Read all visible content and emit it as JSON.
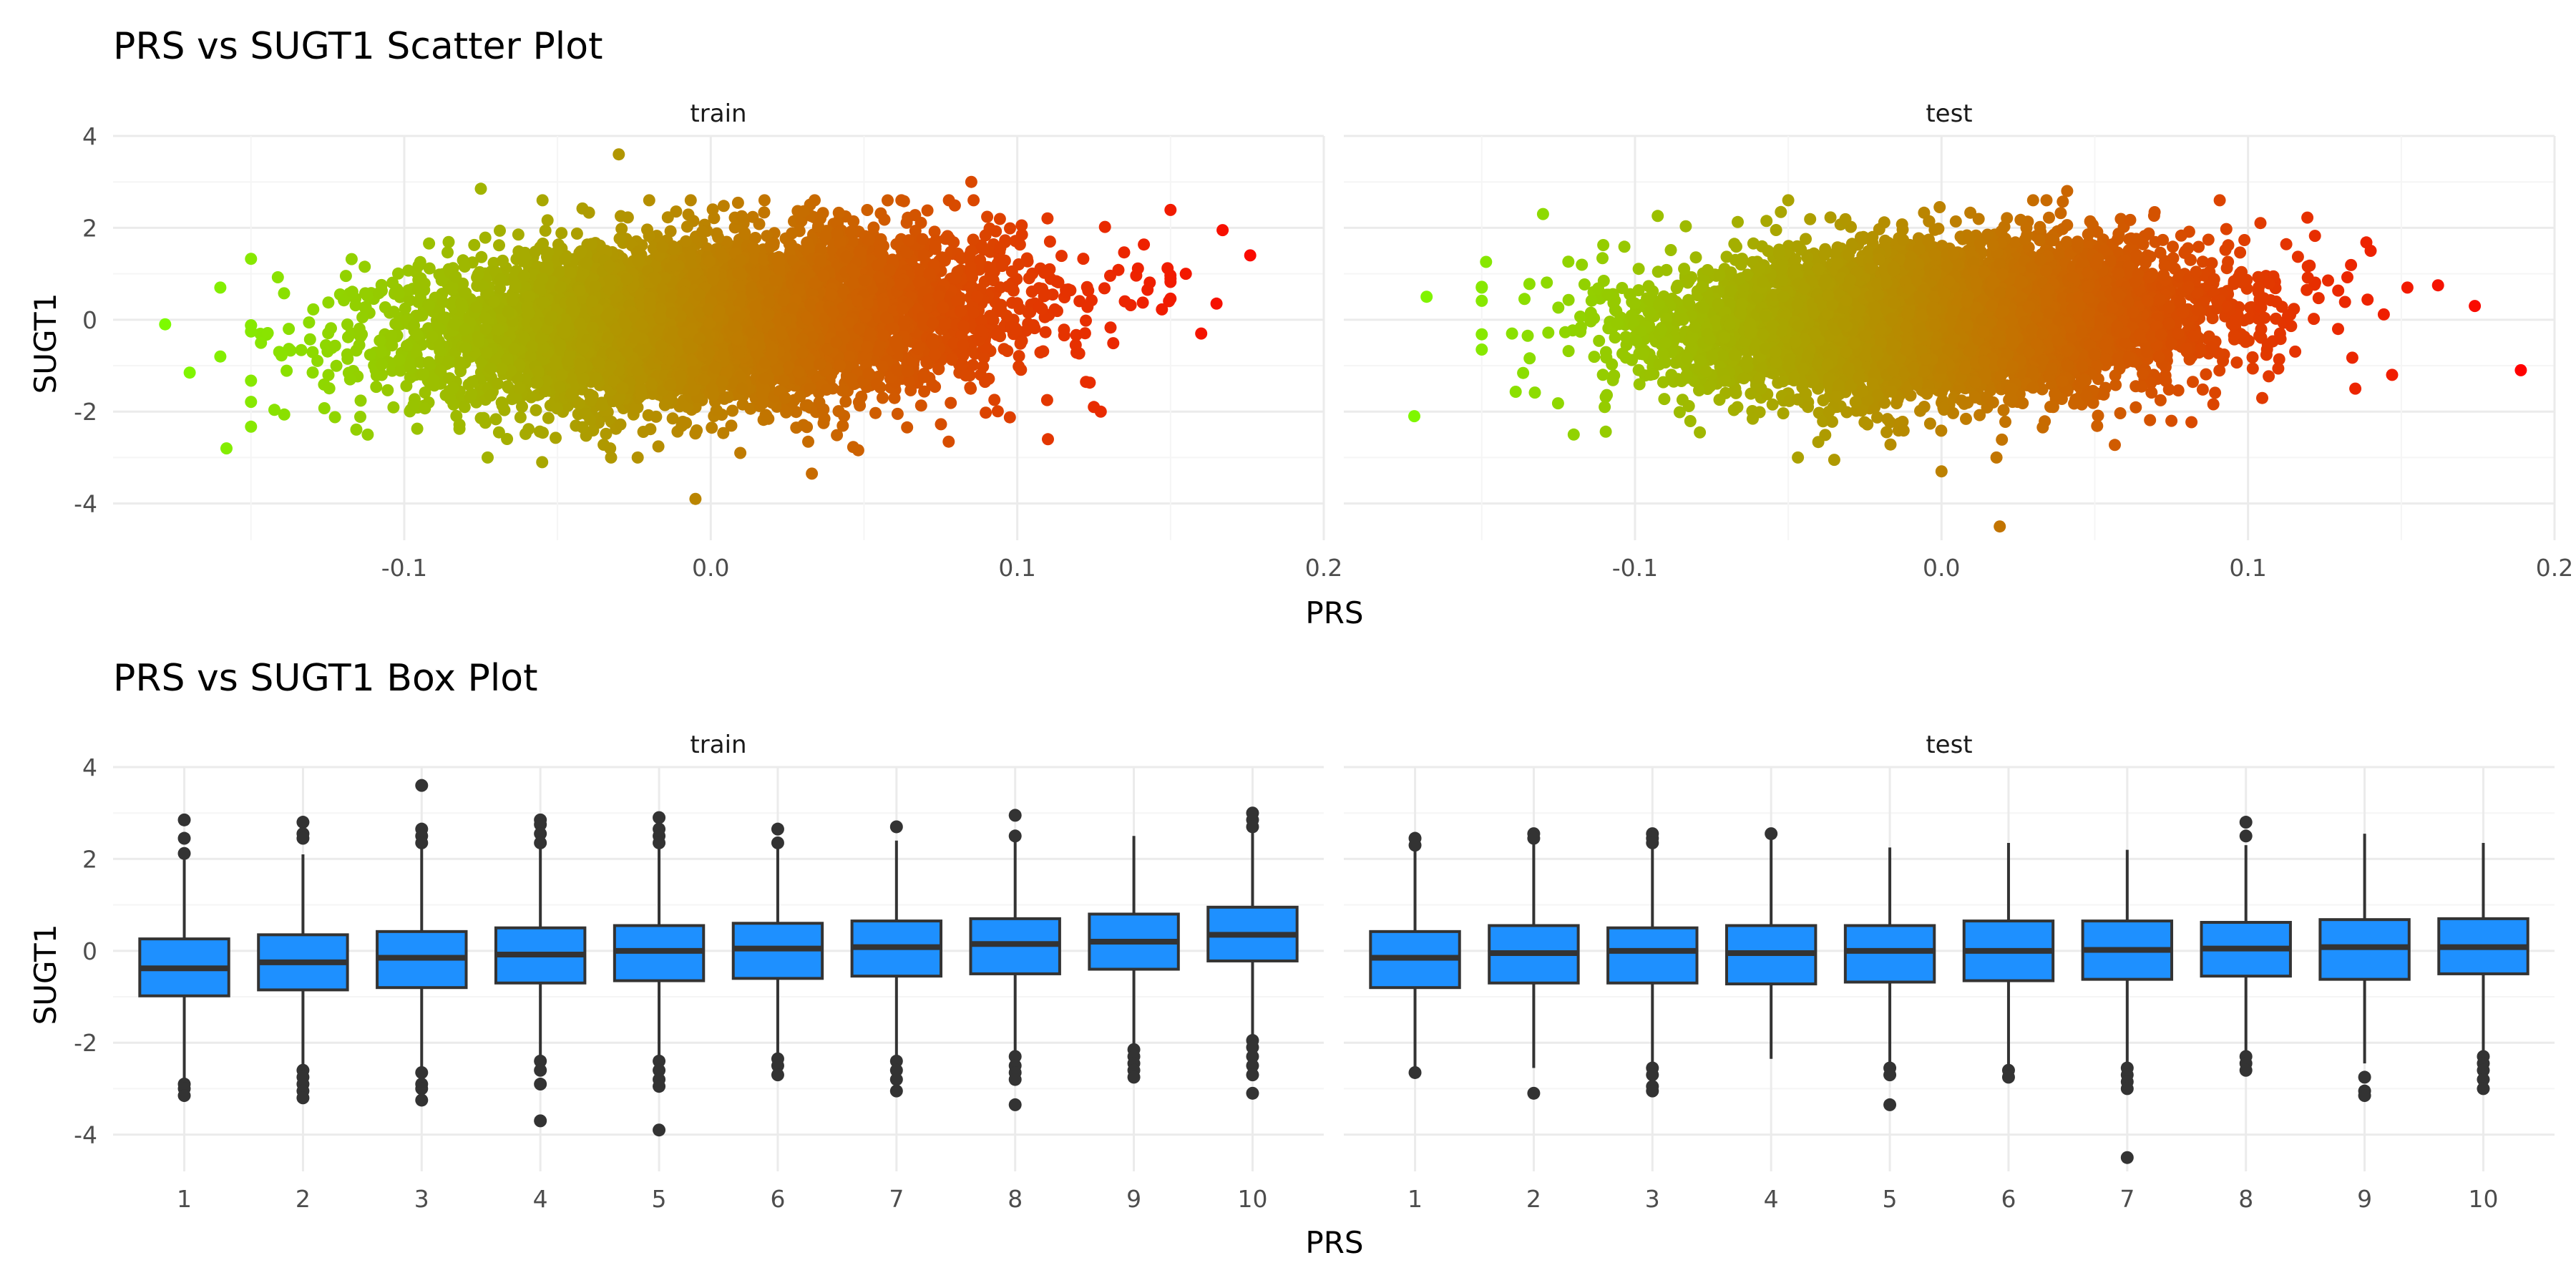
{
  "figure": {
    "title_top": "PRS vs SUGT1 Scatter Plot",
    "title_bottom": "PRS vs SUGT1 Box Plot"
  },
  "colors": {
    "low": "#7CFC00",
    "high": "#FF0000",
    "box_fill": "#1E90FF",
    "box_line": "#333333",
    "grid_major": "#EBEBEB",
    "grid_minor": "#F5F5F5",
    "text": "#000000",
    "tick_text": "#4D4D4D"
  },
  "chart_data": [
    {
      "type": "scatter",
      "title": "PRS vs SUGT1 Scatter Plot",
      "xlabel": "PRS",
      "ylabel": "SUGT1",
      "xlim": [
        -0.195,
        0.2
      ],
      "ylim": [
        -4.8,
        4.0
      ],
      "xticks": [
        -0.1,
        0.0,
        0.1,
        0.2
      ],
      "xtick_labels": [
        "-0.1",
        "0.0",
        "0.1",
        "0.2"
      ],
      "yticks": [
        -4,
        -2,
        0,
        2,
        4
      ],
      "ytick_labels": [
        "-4",
        "-2",
        "0",
        "2",
        "4"
      ],
      "color_scale": {
        "variable": "PRS",
        "low_value": -0.18,
        "high_value": 0.19
      },
      "grid": true,
      "panels": [
        {
          "name": "train",
          "sd_x": 0.047,
          "sd_y": 0.93,
          "slope": 3.5,
          "extreme_points": [
            {
              "x": -0.178,
              "y": -0.1
            },
            {
              "x": -0.17,
              "y": -1.15
            },
            {
              "x": -0.16,
              "y": 0.7
            },
            {
              "x": -0.158,
              "y": -2.8
            },
            {
              "x": -0.16,
              "y": -0.8
            },
            {
              "x": -0.03,
              "y": 3.6
            },
            {
              "x": -0.005,
              "y": -3.9
            },
            {
              "x": 0.033,
              "y": -3.35
            },
            {
              "x": 0.085,
              "y": 3.0
            },
            {
              "x": 0.11,
              "y": -2.6
            },
            {
              "x": 0.167,
              "y": 1.95
            },
            {
              "x": 0.176,
              "y": 1.4
            },
            {
              "x": 0.165,
              "y": 0.35
            },
            {
              "x": 0.16,
              "y": -0.3
            },
            {
              "x": 0.155,
              "y": 1.0
            },
            {
              "x": -0.075,
              "y": 2.85
            },
            {
              "x": -0.055,
              "y": -3.1
            },
            {
              "x": 0.125,
              "y": -1.9
            }
          ]
        },
        {
          "name": "test",
          "sd_x": 0.043,
          "sd_y": 0.85,
          "slope": 2.5,
          "extreme_points": [
            {
              "x": -0.172,
              "y": -2.1
            },
            {
              "x": -0.168,
              "y": 0.5
            },
            {
              "x": -0.15,
              "y": 0.7
            },
            {
              "x": -0.13,
              "y": 2.3
            },
            {
              "x": -0.135,
              "y": -0.35
            },
            {
              "x": -0.12,
              "y": -2.5
            },
            {
              "x": 0.019,
              "y": -4.5
            },
            {
              "x": 0.041,
              "y": 2.8
            },
            {
              "x": 0.189,
              "y": -1.1
            },
            {
              "x": 0.174,
              "y": 0.3
            },
            {
              "x": 0.162,
              "y": 0.75
            },
            {
              "x": 0.152,
              "y": 0.7
            },
            {
              "x": 0.14,
              "y": 1.5
            },
            {
              "x": 0.147,
              "y": -1.2
            },
            {
              "x": 0.135,
              "y": -1.5
            },
            {
              "x": 0.0,
              "y": -3.3
            },
            {
              "x": -0.035,
              "y": -3.05
            },
            {
              "x": 0.075,
              "y": -2.2
            }
          ]
        }
      ]
    },
    {
      "type": "box",
      "title": "PRS vs SUGT1 Box Plot",
      "xlabel": "PRS",
      "ylabel": "SUGT1",
      "categories": [
        "1",
        "2",
        "3",
        "4",
        "5",
        "6",
        "7",
        "8",
        "9",
        "10"
      ],
      "ylim": [
        -4.8,
        4.0
      ],
      "yticks": [
        -4,
        -2,
        0,
        2,
        4
      ],
      "ytick_labels": [
        "-4",
        "-2",
        "0",
        "2",
        "4"
      ],
      "grid": true,
      "panels": [
        {
          "name": "train",
          "boxes": [
            {
              "median": -0.38,
              "q1": -0.98,
              "q3": 0.26,
              "lower": -2.8,
              "upper": 2.1,
              "outliers": [
                2.85,
                2.45,
                2.12,
                -2.9,
                -3.0,
                -3.15
              ]
            },
            {
              "median": -0.25,
              "q1": -0.85,
              "q3": 0.35,
              "lower": -2.5,
              "upper": 2.1,
              "outliers": [
                2.8,
                2.55,
                2.45,
                -2.6,
                -2.75,
                -2.9,
                -3.05,
                -3.2
              ]
            },
            {
              "median": -0.15,
              "q1": -0.8,
              "q3": 0.42,
              "lower": -2.6,
              "upper": 2.3,
              "outliers": [
                3.6,
                2.65,
                2.5,
                2.35,
                -2.65,
                -2.9,
                -3.0,
                -3.25
              ]
            },
            {
              "median": -0.08,
              "q1": -0.7,
              "q3": 0.5,
              "lower": -2.3,
              "upper": 2.3,
              "outliers": [
                2.85,
                2.75,
                2.55,
                2.35,
                -2.4,
                -2.6,
                -2.9,
                -3.7
              ]
            },
            {
              "median": 0.0,
              "q1": -0.65,
              "q3": 0.55,
              "lower": -2.3,
              "upper": 2.3,
              "outliers": [
                2.9,
                2.65,
                2.5,
                2.35,
                -2.4,
                -2.6,
                -2.8,
                -2.95,
                -3.9
              ]
            },
            {
              "median": 0.05,
              "q1": -0.6,
              "q3": 0.6,
              "lower": -2.3,
              "upper": 2.3,
              "outliers": [
                2.65,
                2.35,
                -2.35,
                -2.5,
                -2.7
              ]
            },
            {
              "median": 0.08,
              "q1": -0.55,
              "q3": 0.65,
              "lower": -2.35,
              "upper": 2.4,
              "outliers": [
                2.7,
                -2.4,
                -2.6,
                -2.8,
                -3.05
              ]
            },
            {
              "median": 0.15,
              "q1": -0.5,
              "q3": 0.7,
              "lower": -2.2,
              "upper": 2.45,
              "outliers": [
                2.95,
                2.5,
                -2.3,
                -2.5,
                -2.65,
                -2.8,
                -3.35
              ]
            },
            {
              "median": 0.2,
              "q1": -0.4,
              "q3": 0.8,
              "lower": -2.1,
              "upper": 2.5,
              "outliers": [
                -2.15,
                -2.3,
                -2.45,
                -2.6,
                -2.75
              ]
            },
            {
              "median": 0.35,
              "q1": -0.22,
              "q3": 0.95,
              "lower": -1.85,
              "upper": 2.6,
              "outliers": [
                3.0,
                2.85,
                2.7,
                -1.95,
                -2.1,
                -2.3,
                -2.5,
                -2.7,
                -3.1
              ]
            }
          ]
        },
        {
          "name": "test",
          "boxes": [
            {
              "median": -0.15,
              "q1": -0.8,
              "q3": 0.42,
              "lower": -2.65,
              "upper": 2.25,
              "outliers": [
                2.45,
                2.3,
                -2.65
              ]
            },
            {
              "median": -0.05,
              "q1": -0.7,
              "q3": 0.55,
              "lower": -2.55,
              "upper": 2.4,
              "outliers": [
                2.55,
                2.45,
                -3.1
              ]
            },
            {
              "median": 0.0,
              "q1": -0.7,
              "q3": 0.5,
              "lower": -2.5,
              "upper": 2.35,
              "outliers": [
                2.55,
                2.45,
                2.35,
                -2.55,
                -2.7,
                -2.95,
                -3.05
              ]
            },
            {
              "median": -0.05,
              "q1": -0.72,
              "q3": 0.55,
              "lower": -2.35,
              "upper": 2.5,
              "outliers": [
                2.55
              ]
            },
            {
              "median": 0.0,
              "q1": -0.68,
              "q3": 0.55,
              "lower": -2.5,
              "upper": 2.25,
              "outliers": [
                -2.55,
                -2.7,
                -3.35
              ]
            },
            {
              "median": 0.0,
              "q1": -0.65,
              "q3": 0.65,
              "lower": -2.5,
              "upper": 2.35,
              "outliers": [
                -2.6,
                -2.75
              ]
            },
            {
              "median": 0.02,
              "q1": -0.62,
              "q3": 0.65,
              "lower": -2.45,
              "upper": 2.2,
              "outliers": [
                -2.55,
                -2.7,
                -2.85,
                -3.0,
                -4.5
              ]
            },
            {
              "median": 0.05,
              "q1": -0.55,
              "q3": 0.62,
              "lower": -2.25,
              "upper": 2.3,
              "outliers": [
                2.8,
                2.5,
                -2.3,
                -2.45,
                -2.6
              ]
            },
            {
              "median": 0.08,
              "q1": -0.62,
              "q3": 0.68,
              "lower": -2.45,
              "upper": 2.55,
              "outliers": [
                -2.75,
                -3.05,
                -3.15
              ]
            },
            {
              "median": 0.08,
              "q1": -0.5,
              "q3": 0.7,
              "lower": -2.2,
              "upper": 2.35,
              "outliers": [
                -2.3,
                -2.45,
                -2.6,
                -2.8,
                -3.0
              ]
            }
          ]
        }
      ]
    }
  ]
}
